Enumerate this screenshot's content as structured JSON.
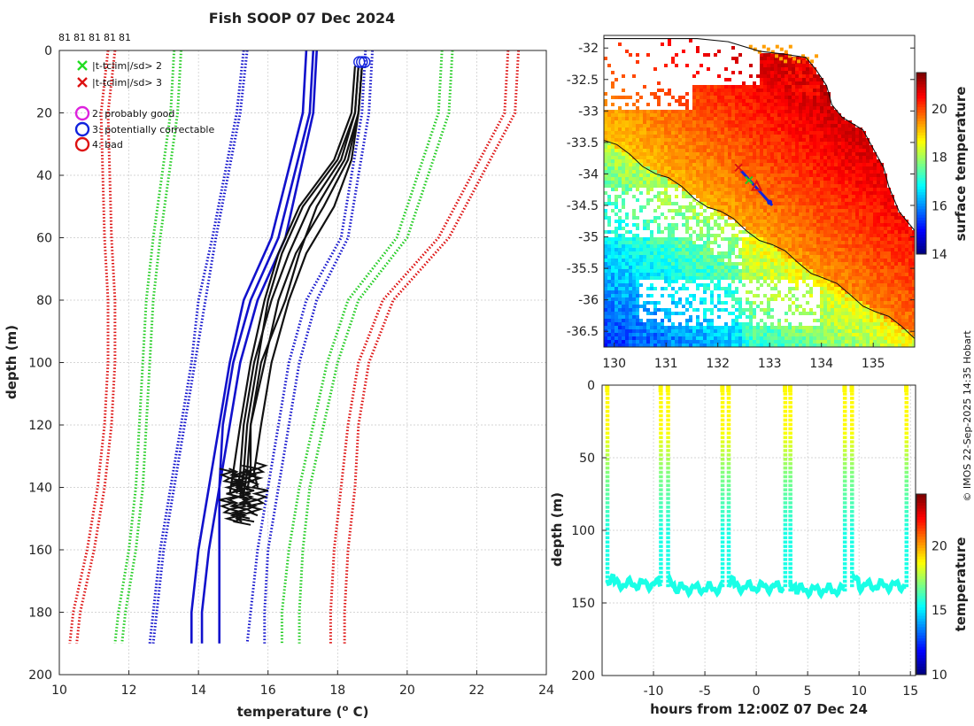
{
  "chart_data": [
    {
      "type": "line",
      "title": "Fish SOOP 07 Dec 2024",
      "xlabel": "temperature (",
      "xlabel_super": "o",
      "xlabel_unit": " C)",
      "ylabel": "depth (m)",
      "xlim": [
        10,
        24
      ],
      "ylim": [
        200,
        0
      ],
      "xticks": [
        10,
        12,
        14,
        16,
        18,
        20,
        22,
        24
      ],
      "yticks": [
        0,
        20,
        40,
        60,
        80,
        100,
        120,
        140,
        160,
        180,
        200
      ],
      "top_counts": [
        "81",
        "81",
        "81",
        "81",
        "81"
      ],
      "legend": [
        {
          "symbol": "x",
          "color": "#22dd22",
          "label": "|t-tclim|/sd> 2"
        },
        {
          "symbol": "x",
          "color": "#dd1111",
          "label": "|t-tclim|/sd> 3"
        },
        {
          "symbol": "o",
          "color": "#dd22dd",
          "label": "2: probably good"
        },
        {
          "symbol": "o",
          "color": "#1122dd",
          "label": "3: potentially correctable"
        },
        {
          "symbol": "o",
          "color": "#dd1111",
          "label": "4: bad"
        }
      ],
      "series": [
        {
          "name": "climatology mean A",
          "style": "solid",
          "color": "#1111cc",
          "x": [
            17.3,
            17.2,
            16.3,
            15.5,
            15.0,
            14.7,
            14.6,
            14.6,
            14.6,
            14.6
          ],
          "y": [
            0,
            20,
            60,
            80,
            100,
            120,
            140,
            160,
            180,
            190
          ]
        },
        {
          "name": "climatology mean B",
          "style": "solid",
          "color": "#1111cc",
          "x": [
            17.4,
            17.3,
            16.5,
            15.7,
            15.2,
            14.9,
            14.6,
            14.3,
            14.1,
            14.1
          ],
          "y": [
            0,
            20,
            60,
            80,
            100,
            120,
            140,
            160,
            180,
            190
          ]
        },
        {
          "name": "climatology mean C",
          "style": "solid",
          "color": "#1111cc",
          "x": [
            17.1,
            17.0,
            16.1,
            15.3,
            14.9,
            14.6,
            14.3,
            14.0,
            13.8,
            13.8
          ],
          "y": [
            0,
            20,
            60,
            80,
            100,
            120,
            140,
            160,
            180,
            190
          ]
        },
        {
          "name": "-1 sd",
          "style": "dotted",
          "color": "#1111cc",
          "x": [
            15.4,
            15.2,
            14.5,
            14.2,
            13.9,
            13.6,
            13.3,
            13.0,
            12.8,
            12.7
          ],
          "y": [
            0,
            20,
            60,
            80,
            100,
            120,
            140,
            160,
            180,
            190
          ]
        },
        {
          "name": "-1 sd b",
          "style": "dotted",
          "color": "#1111cc",
          "x": [
            15.3,
            15.1,
            14.4,
            14.0,
            13.8,
            13.5,
            13.2,
            12.9,
            12.7,
            12.6
          ],
          "y": [
            0,
            20,
            60,
            80,
            100,
            120,
            140,
            160,
            180,
            190
          ]
        },
        {
          "name": "+1 sd",
          "style": "dotted",
          "color": "#1111cc",
          "x": [
            19.0,
            18.9,
            18.3,
            17.4,
            16.9,
            16.6,
            16.3,
            16.0,
            15.9,
            15.9
          ],
          "y": [
            0,
            20,
            60,
            80,
            100,
            120,
            140,
            160,
            180,
            190
          ]
        },
        {
          "name": "+1 sd b",
          "style": "dotted",
          "color": "#1111cc",
          "x": [
            18.8,
            18.7,
            18.1,
            17.1,
            16.6,
            16.3,
            16.0,
            15.7,
            15.5,
            15.4
          ],
          "y": [
            0,
            20,
            60,
            80,
            100,
            120,
            140,
            160,
            180,
            190
          ]
        },
        {
          "name": "-2 sd",
          "style": "dotted",
          "color": "#22cc22",
          "x": [
            13.5,
            13.4,
            12.9,
            12.7,
            12.6,
            12.5,
            12.4,
            12.2,
            11.9,
            11.8
          ],
          "y": [
            0,
            20,
            60,
            80,
            100,
            120,
            140,
            160,
            180,
            190
          ]
        },
        {
          "name": "-2 sd b",
          "style": "dotted",
          "color": "#22cc22",
          "x": [
            13.3,
            13.2,
            12.7,
            12.5,
            12.4,
            12.3,
            12.2,
            12.0,
            11.7,
            11.6
          ],
          "y": [
            0,
            20,
            60,
            80,
            100,
            120,
            140,
            160,
            180,
            190
          ]
        },
        {
          "name": "+2 sd",
          "style": "dotted",
          "color": "#22cc22",
          "x": [
            21.3,
            21.2,
            20.0,
            18.6,
            18.0,
            17.6,
            17.2,
            17.0,
            16.9,
            16.9
          ],
          "y": [
            0,
            20,
            60,
            80,
            100,
            120,
            140,
            160,
            180,
            190
          ]
        },
        {
          "name": "+2 sd b",
          "style": "dotted",
          "color": "#22cc22",
          "x": [
            21.0,
            20.9,
            19.7,
            18.3,
            17.7,
            17.3,
            16.9,
            16.6,
            16.4,
            16.4
          ],
          "y": [
            0,
            20,
            60,
            80,
            100,
            120,
            140,
            160,
            180,
            190
          ]
        },
        {
          "name": "-3 sd",
          "style": "dotted",
          "color": "#dd1111",
          "x": [
            11.6,
            11.4,
            11.5,
            11.6,
            11.6,
            11.5,
            11.3,
            11.0,
            10.6,
            10.5
          ],
          "y": [
            0,
            20,
            60,
            80,
            100,
            120,
            140,
            160,
            180,
            190
          ]
        },
        {
          "name": "-3 sd b",
          "style": "dotted",
          "color": "#dd1111",
          "x": [
            11.4,
            11.2,
            11.3,
            11.4,
            11.4,
            11.3,
            11.1,
            10.8,
            10.4,
            10.3
          ],
          "y": [
            0,
            20,
            60,
            80,
            100,
            120,
            140,
            160,
            180,
            190
          ]
        },
        {
          "name": "+3 sd",
          "style": "dotted",
          "color": "#dd1111",
          "x": [
            23.2,
            23.1,
            21.2,
            19.6,
            18.9,
            18.6,
            18.5,
            18.3,
            18.2,
            18.2
          ],
          "y": [
            0,
            20,
            60,
            80,
            100,
            120,
            140,
            160,
            180,
            190
          ]
        },
        {
          "name": "+3 sd b",
          "style": "dotted",
          "color": "#dd1111",
          "x": [
            22.9,
            22.8,
            20.9,
            19.3,
            18.6,
            18.3,
            18.1,
            17.9,
            17.8,
            17.8
          ],
          "y": [
            0,
            20,
            60,
            80,
            100,
            120,
            140,
            160,
            180,
            190
          ]
        },
        {
          "name": "profile 1",
          "style": "solid",
          "color": "#111111",
          "x": [
            18.7,
            18.6,
            18.3,
            17.6,
            16.8,
            16.3,
            15.9,
            15.5,
            15.4,
            15.3
          ],
          "y": [
            5,
            20,
            35,
            50,
            65,
            80,
            100,
            120,
            135,
            142
          ]
        },
        {
          "name": "profile 2",
          "style": "solid",
          "color": "#111111",
          "x": [
            18.6,
            18.5,
            18.1,
            17.2,
            16.6,
            16.1,
            15.6,
            15.3,
            15.2,
            15.1
          ],
          "y": [
            5,
            20,
            35,
            50,
            65,
            80,
            100,
            120,
            135,
            142
          ]
        },
        {
          "name": "profile 3",
          "style": "solid",
          "color": "#111111",
          "x": [
            18.7,
            18.6,
            18.4,
            17.9,
            17.1,
            16.6,
            16.1,
            15.8,
            15.6,
            15.7
          ],
          "y": [
            5,
            20,
            35,
            50,
            65,
            80,
            100,
            120,
            135,
            140
          ]
        },
        {
          "name": "profile 4",
          "style": "solid",
          "color": "#111111",
          "x": [
            18.5,
            18.4,
            17.9,
            16.9,
            16.3,
            15.9,
            15.5,
            15.2,
            15.0,
            14.9
          ],
          "y": [
            5,
            20,
            35,
            50,
            65,
            80,
            100,
            120,
            135,
            142
          ]
        },
        {
          "name": "profile 5",
          "style": "solid",
          "color": "#111111",
          "x": [
            18.7,
            18.6,
            18.2,
            17.4,
            16.9,
            16.5,
            15.8,
            15.5,
            15.5,
            15.4
          ],
          "y": [
            5,
            20,
            35,
            50,
            65,
            80,
            100,
            120,
            135,
            141
          ]
        },
        {
          "name": "profile 6",
          "style": "solid",
          "color": "#111111",
          "x": [
            18.6,
            18.5,
            18.0,
            17.0,
            16.4,
            16.0,
            15.7,
            15.4,
            15.3,
            15.2
          ],
          "y": [
            5,
            20,
            35,
            50,
            65,
            80,
            100,
            120,
            135,
            143
          ]
        }
      ],
      "flag_markers": [
        {
          "x": 18.7,
          "y": 2,
          "label": "3: potentially correctable"
        }
      ]
    },
    {
      "type": "heatmap",
      "title": "",
      "colorbar_label": "surface temperature",
      "xticks": [
        "130",
        "131",
        "132",
        "133",
        "134",
        "135"
      ],
      "yticks": [
        "-32",
        "-32.5",
        "-33",
        "-33.5",
        "-34",
        "-34.5",
        "-35",
        "-35.5",
        "-36",
        "-36.5"
      ],
      "cbar_ticks": [
        "14",
        "16",
        "18",
        "20"
      ],
      "clim": [
        14,
        21.5
      ],
      "xlim": [
        129.8,
        135.8
      ],
      "ylim": [
        -36.75,
        -31.8
      ],
      "track": [
        {
          "lon": 132.4,
          "lat": -33.9,
          "marker": "x",
          "color": "#dd1111"
        },
        {
          "lon": 132.6,
          "lat": -34.1,
          "marker": "x",
          "color": "#22cc22"
        },
        {
          "lon": 132.75,
          "lat": -34.2,
          "marker": "triangle",
          "color": "#dd1111"
        },
        {
          "lon": 133.0,
          "lat": -34.45,
          "marker": "o",
          "color": "#1122dd"
        }
      ]
    },
    {
      "type": "line",
      "xlabel": "hours from 12:00Z 07 Dec 24",
      "ylabel": "depth (m)",
      "colorbar_label": "temperature",
      "xlim": [
        -15,
        15.5
      ],
      "ylim": [
        200,
        0
      ],
      "xticks": [
        "-10",
        "-5",
        "0",
        "5",
        "10",
        "15"
      ],
      "yticks": [
        "0",
        "50",
        "100",
        "150",
        "200"
      ],
      "cbar_ticks": [
        "10",
        "15",
        "20"
      ],
      "clim": [
        10,
        24
      ],
      "casts": [
        {
          "t0": -14.5,
          "t1": -9.3,
          "max_depth": 137
        },
        {
          "t0": -8.6,
          "t1": -3.3,
          "max_depth": 140
        },
        {
          "t0": -2.7,
          "t1": 2.8,
          "max_depth": 139
        },
        {
          "t0": 3.3,
          "t1": 8.6,
          "max_depth": 141
        },
        {
          "t0": 9.3,
          "t1": 14.6,
          "max_depth": 138
        }
      ]
    }
  ],
  "side_text": "© IMOS 22-Sep-2025 14:35 Hobart"
}
